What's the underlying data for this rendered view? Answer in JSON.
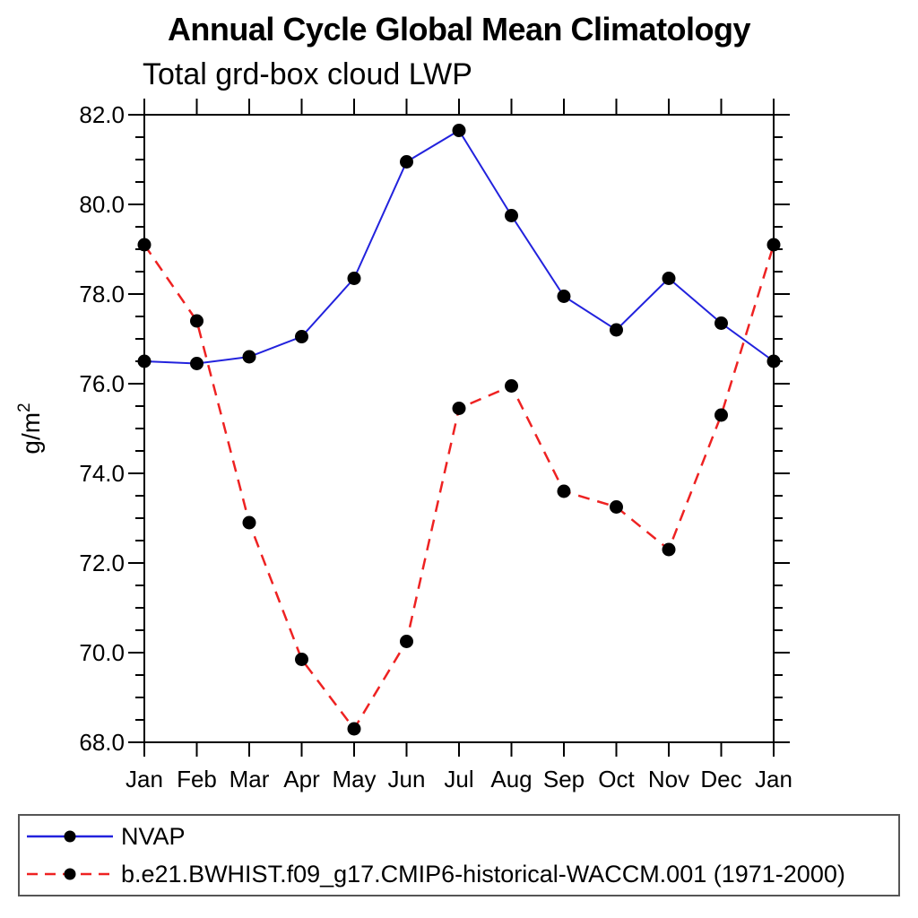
{
  "title": "Annual Cycle Global Mean Climatology",
  "subtitle": "Total grd-box cloud LWP",
  "colors": {
    "background": "#ffffff",
    "axis": "#000000",
    "marker": "#000000",
    "nvap_line": "#2222dd",
    "model_line": "#ee2222",
    "legend_border": "#555555"
  },
  "chart_data": {
    "type": "line",
    "x_labels": [
      "Jan",
      "Feb",
      "Mar",
      "Apr",
      "May",
      "Jun",
      "Jul",
      "Aug",
      "Sep",
      "Oct",
      "Nov",
      "Dec",
      "Jan"
    ],
    "ylabel": "g/m²",
    "ylabel_base": "g/m",
    "ylabel_sup": "2",
    "ylim": [
      68.0,
      82.0
    ],
    "ytick_step": 2.0,
    "yminor_step": 0.5,
    "ytick_labels": [
      "68.0",
      "70.0",
      "72.0",
      "74.0",
      "76.0",
      "78.0",
      "80.0",
      "82.0"
    ],
    "grid": false,
    "legend_position": "bottom-left-box",
    "series": [
      {
        "name": "NVAP",
        "color": "#2222dd",
        "style": "solid",
        "marker": "filled-circle",
        "marker_color": "#000000",
        "values": [
          76.5,
          76.45,
          76.6,
          77.05,
          78.35,
          80.95,
          81.65,
          79.75,
          77.95,
          77.2,
          78.35,
          77.35,
          76.5
        ]
      },
      {
        "name": "b.e21.BWHIST.f09_g17.CMIP6-historical-WACCM.001 (1971-2000)",
        "color": "#ee2222",
        "style": "dashed",
        "marker": "filled-circle",
        "marker_color": "#000000",
        "values": [
          79.1,
          77.4,
          72.9,
          69.85,
          68.3,
          70.25,
          75.45,
          75.95,
          73.6,
          73.25,
          72.3,
          75.3,
          79.1
        ]
      }
    ]
  }
}
